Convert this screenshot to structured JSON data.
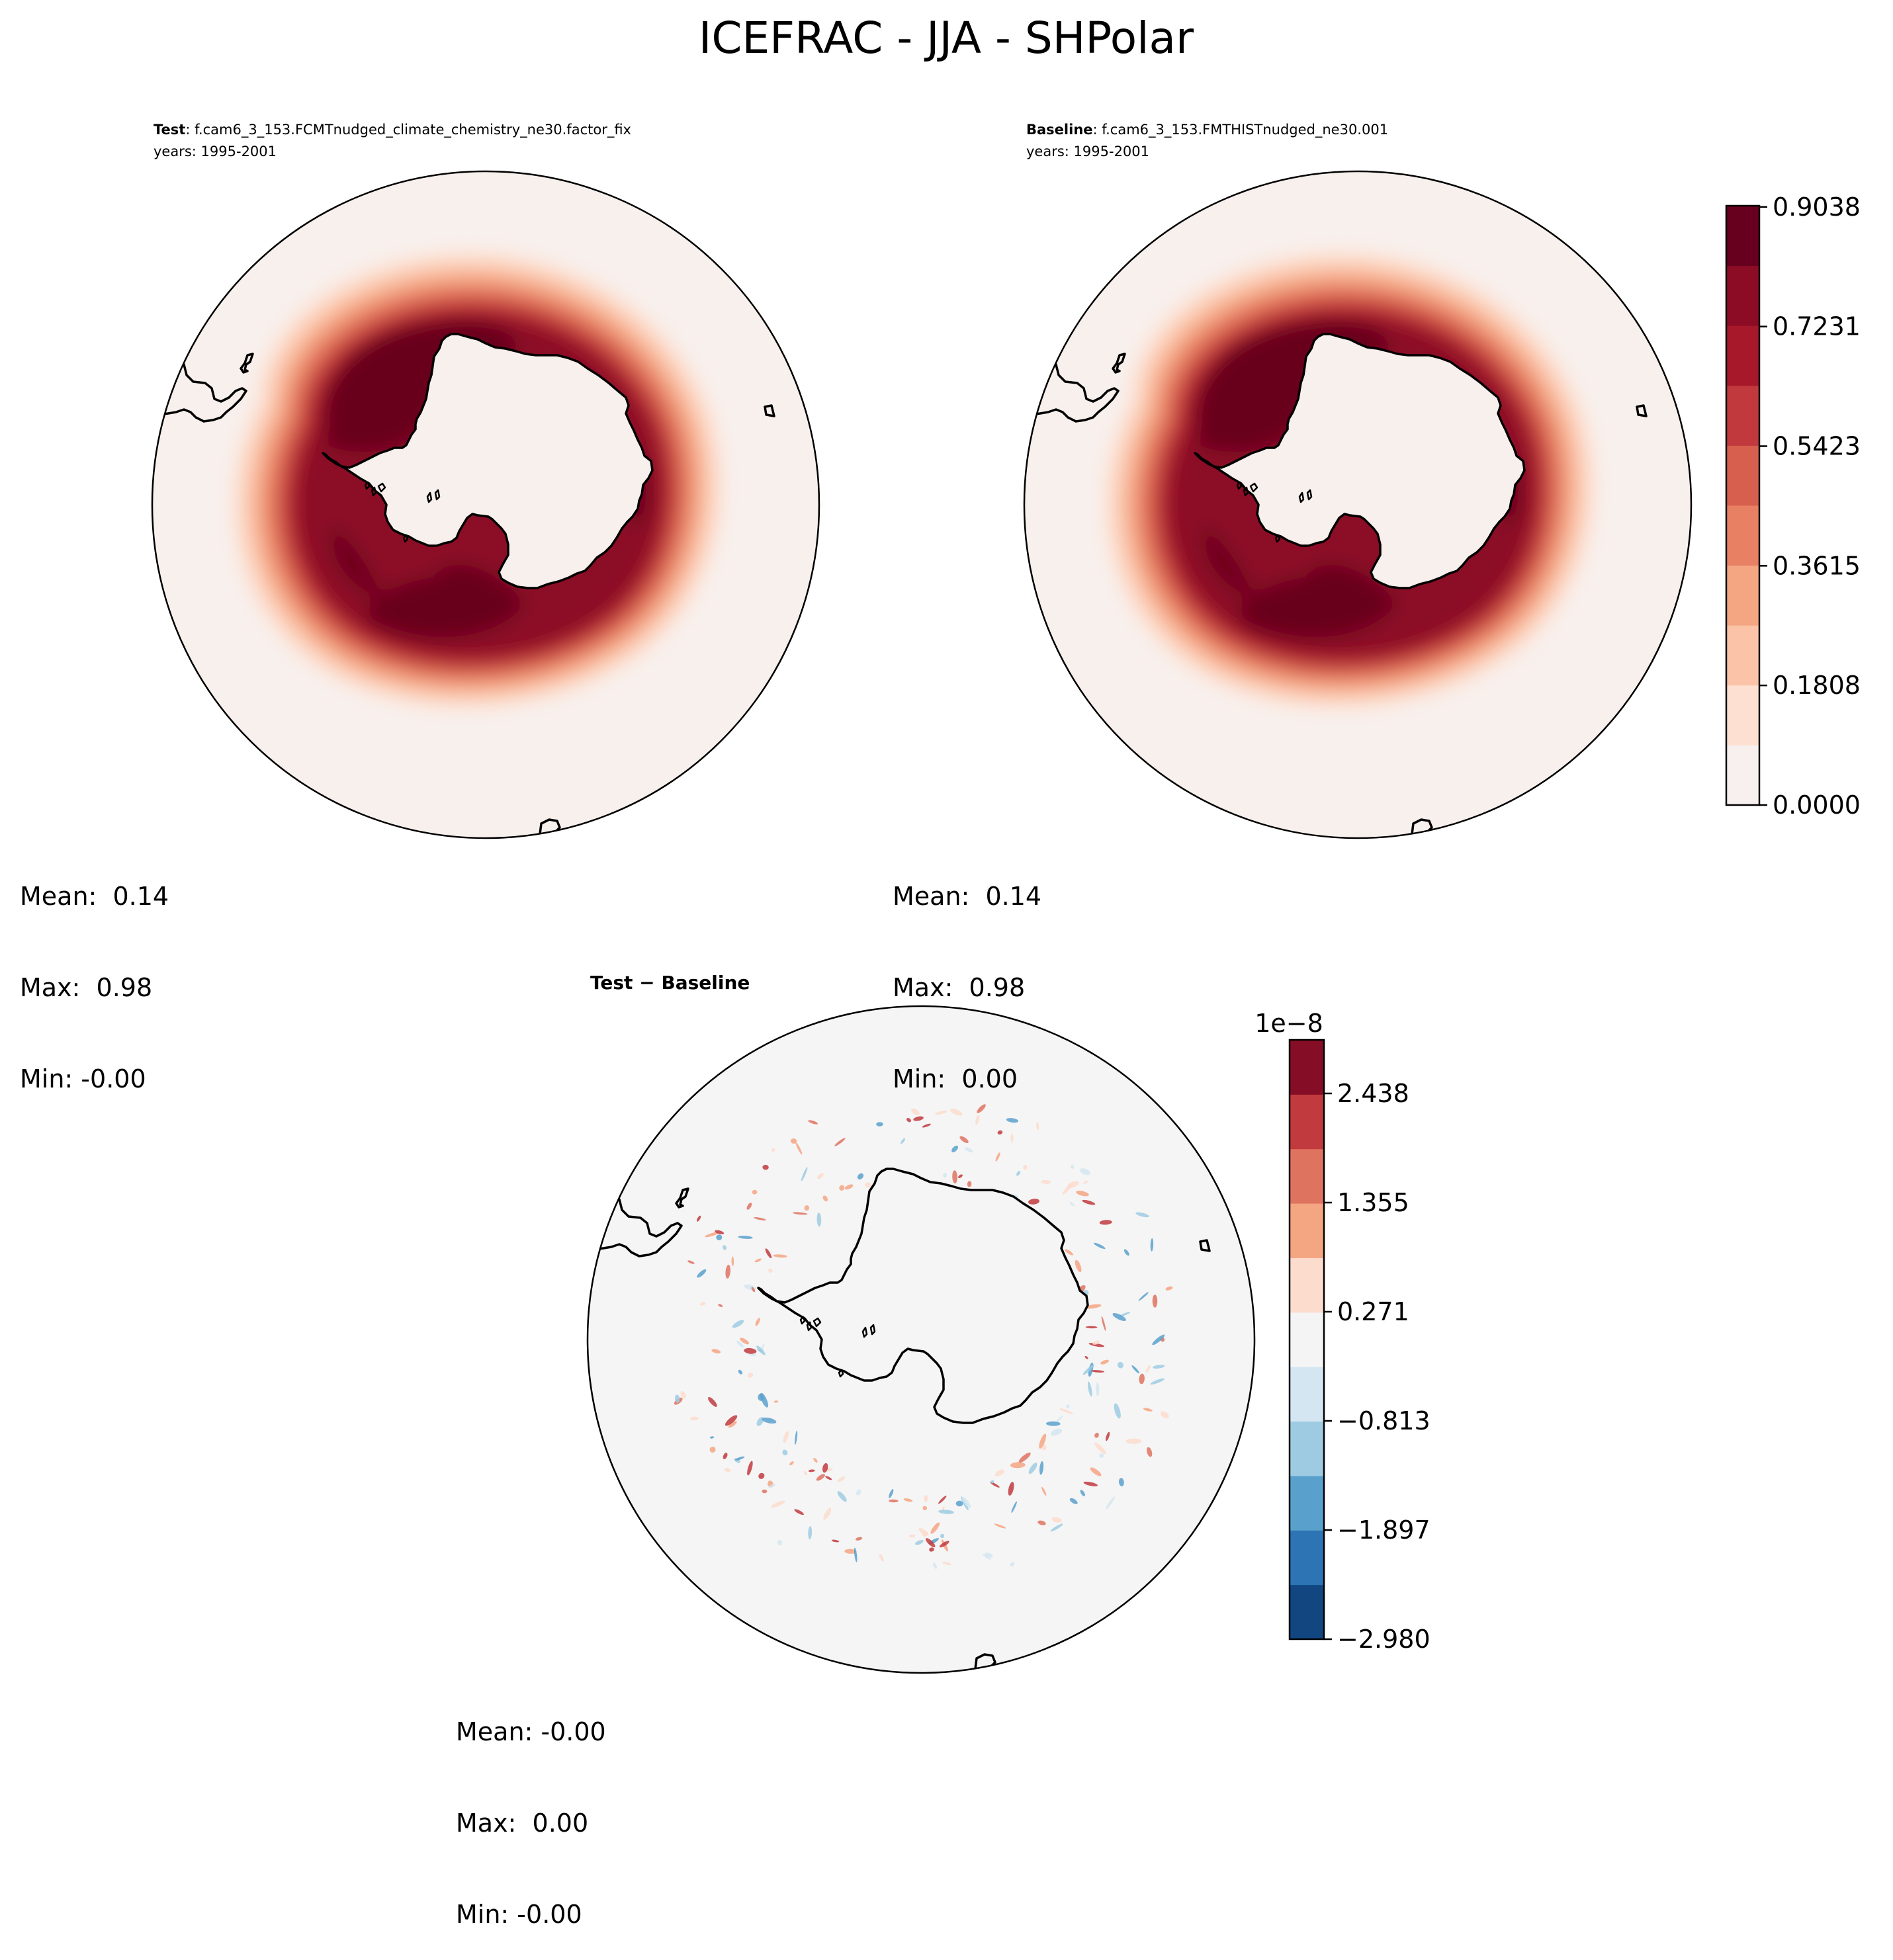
{
  "title": "ICEFRAC - JJA - SHPolar",
  "panels": [
    {
      "id": "test",
      "label_bold": "Test",
      "label_rest": ": f.cam6_3_153.FCMTnudged_climate_chemistry_ne30.factor_fix",
      "years": "years: 1995-2001",
      "stats": {
        "mean": "Mean:  0.14",
        "max": "Max:  0.98",
        "min": "Min: -0.00"
      }
    },
    {
      "id": "baseline",
      "label_bold": "Baseline",
      "label_rest": ": f.cam6_3_153.FMTHISTnudged_ne30.001",
      "years": "years: 1995-2001",
      "stats": {
        "mean": "Mean:  0.14",
        "max": "Max:  0.98",
        "min": "Min:  0.00"
      }
    },
    {
      "id": "diff",
      "label_bold": "Test − Baseline",
      "stats": {
        "mean": "Mean: -0.00",
        "max": "Max:  0.00",
        "min": "Min: -0.00"
      }
    }
  ],
  "colorbars": {
    "main": {
      "colors": [
        "#f7f0ee",
        "#fde0d1",
        "#fbc4a8",
        "#f4a582",
        "#e88064",
        "#d6604d",
        "#c1393c",
        "#a7182b",
        "#8c0c25",
        "#67001f"
      ],
      "tick_labels": [
        "0.0000",
        "0.1808",
        "0.3615",
        "0.5423",
        "0.7231",
        "0.9038"
      ]
    },
    "diff": {
      "exponent": "1e−8",
      "colors": [
        "#114680",
        "#2d74b4",
        "#5aa0cc",
        "#9ecbe2",
        "#d3e6f1",
        "#f4f4f4",
        "#fcdccc",
        "#f4a582",
        "#de7360",
        "#c13a3e",
        "#860d26"
      ],
      "tick_labels": [
        "−2.980",
        "−1.897",
        "−0.813",
        "0.271",
        "1.355",
        "2.438"
      ]
    }
  },
  "map_colors": {
    "ocean_main": "#f8f0ed",
    "ocean_diff": "#f5f5f5",
    "coast": "#000000"
  }
}
